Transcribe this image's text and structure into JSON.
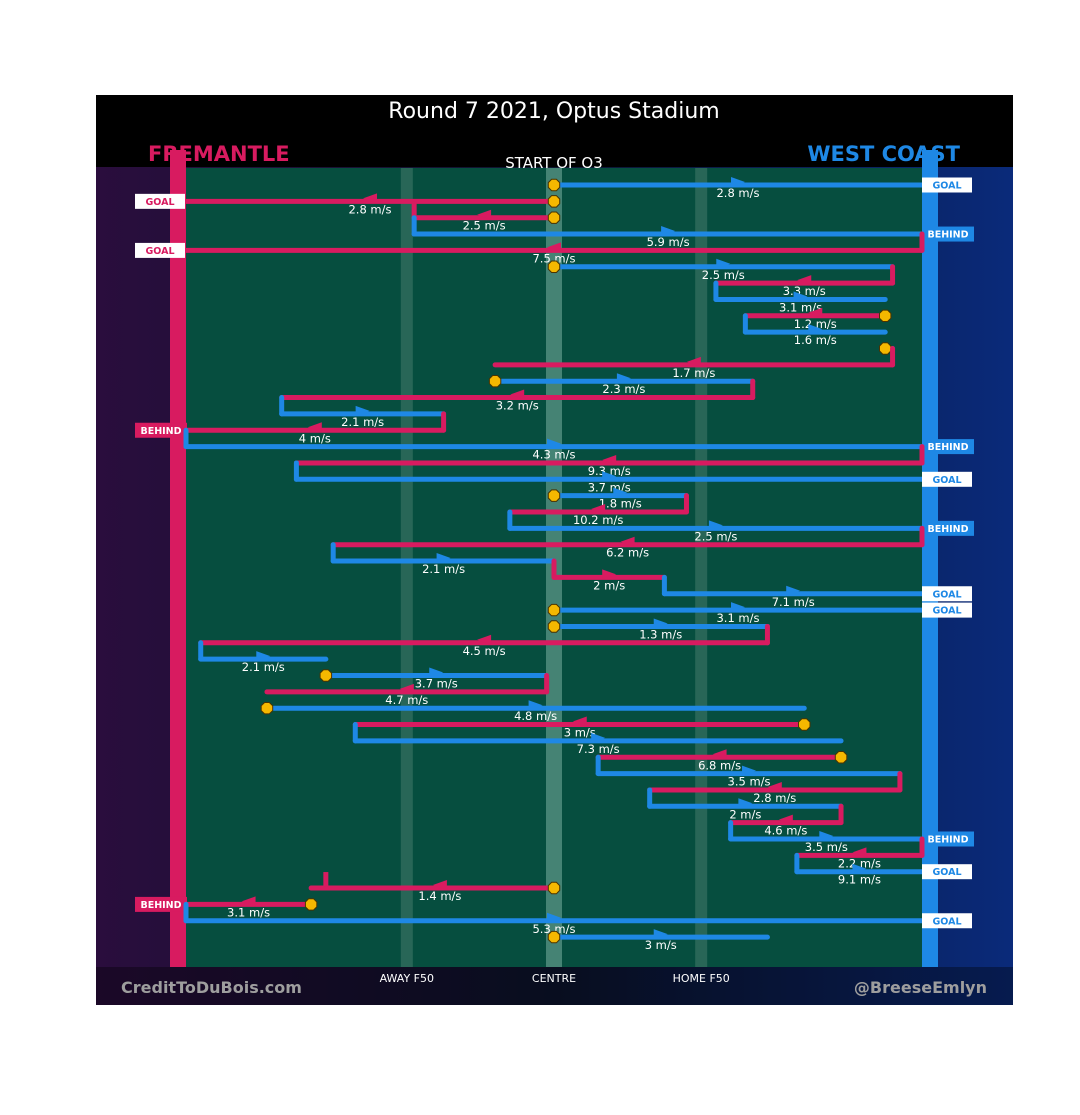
{
  "chart_data": {
    "type": "chain-flow",
    "title": "Round 7 2021, Optus Stadium",
    "subtitle": "START OF Q3",
    "teams": {
      "left": {
        "name": "FREMANTLE",
        "color": "#d81b60"
      },
      "right": {
        "name": "WEST COAST",
        "color": "#1e88e5"
      }
    },
    "x_axis": {
      "ticks": [
        {
          "label": "AWAY F50",
          "value": 0.3
        },
        {
          "label": "CENTRE",
          "value": 0.5
        },
        {
          "label": "HOME F50",
          "value": 0.7
        }
      ],
      "range": [
        0,
        1
      ]
    },
    "footer": {
      "left": "CreditToDuBois.com",
      "right": "@BreeseEmlyn"
    },
    "colors": {
      "fremantle": "#d81b60",
      "west_coast": "#1e88e5",
      "field": "#064e3f",
      "start_marker": "#f5b800",
      "title_bar": "#000000"
    },
    "chains": [
      {
        "team": "west_coast",
        "start": 0.5,
        "segments": [
          [
            0.5,
            1.0
          ]
        ],
        "speed": "2.8 m/s",
        "start_marker": true,
        "outcome": "GOAL"
      },
      {
        "team": "fremantle",
        "start": 0.5,
        "segments": [
          [
            0.5,
            0.0
          ]
        ],
        "speed": "2.8 m/s",
        "start_marker": true,
        "outcome": "GOAL"
      },
      {
        "team": "fremantle",
        "start": 0.5,
        "segments": [
          [
            0.5,
            0.31
          ],
          [
            0.31,
            0.31
          ]
        ],
        "speed": "2.5 m/s",
        "start_marker": true
      },
      {
        "team": "west_coast",
        "start": 0.31,
        "segments": [
          [
            0.31,
            1.0
          ]
        ],
        "speed": "5.9 m/s",
        "outcome": "BEHIND"
      },
      {
        "team": "fremantle",
        "start": 1.0,
        "segments": [
          [
            1.0,
            0.0
          ]
        ],
        "speed": "7.5 m/s",
        "outcome": "GOAL"
      },
      {
        "team": "west_coast",
        "start": 0.5,
        "segments": [
          [
            0.5,
            0.96
          ]
        ],
        "speed": "2.5 m/s",
        "start_marker": true
      },
      {
        "team": "fremantle",
        "start": 0.96,
        "segments": [
          [
            0.96,
            0.72
          ]
        ],
        "speed": "3.3 m/s"
      },
      {
        "team": "west_coast",
        "start": 0.72,
        "segments": [
          [
            0.72,
            0.95
          ]
        ],
        "speed": "3.1 m/s"
      },
      {
        "team": "fremantle",
        "start": 0.95,
        "segments": [
          [
            0.95,
            0.76
          ]
        ],
        "speed": "1.2 m/s",
        "start_marker": true
      },
      {
        "team": "west_coast",
        "start": 0.76,
        "segments": [
          [
            0.76,
            0.95
          ]
        ],
        "speed": "1.6 m/s"
      },
      {
        "team": "west_coast",
        "start": 0.95,
        "segments": [
          [
            0.95,
            0.96
          ]
        ],
        "speed": "",
        "start_marker": true
      },
      {
        "team": "fremantle",
        "start": 0.96,
        "segments": [
          [
            0.96,
            0.42
          ]
        ],
        "speed": "1.7 m/s"
      },
      {
        "team": "west_coast",
        "start": 0.42,
        "segments": [
          [
            0.42,
            0.77
          ]
        ],
        "speed": "2.3 m/s",
        "start_marker": true
      },
      {
        "team": "fremantle",
        "start": 0.77,
        "segments": [
          [
            0.77,
            0.13
          ]
        ],
        "speed": "3.2 m/s"
      },
      {
        "team": "west_coast",
        "start": 0.13,
        "segments": [
          [
            0.13,
            0.35
          ]
        ],
        "speed": "2.1 m/s"
      },
      {
        "team": "fremantle",
        "start": 0.35,
        "segments": [
          [
            0.35,
            0.0
          ]
        ],
        "speed": "4 m/s",
        "outcome": "BEHIND"
      },
      {
        "team": "west_coast",
        "start": 0.0,
        "segments": [
          [
            0.0,
            1.0
          ]
        ],
        "speed": "4.3 m/s",
        "outcome": "BEHIND"
      },
      {
        "team": "fremantle",
        "start": 1.0,
        "segments": [
          [
            1.0,
            0.15
          ]
        ],
        "speed": "9.3 m/s"
      },
      {
        "team": "west_coast",
        "start": 0.15,
        "segments": [
          [
            0.15,
            1.0
          ]
        ],
        "speed": "3.7 m/s",
        "outcome": "GOAL"
      },
      {
        "team": "west_coast",
        "start": 0.5,
        "segments": [
          [
            0.5,
            0.68
          ]
        ],
        "speed": "1.8 m/s",
        "start_marker": true
      },
      {
        "team": "fremantle",
        "start": 0.68,
        "segments": [
          [
            0.68,
            0.44
          ]
        ],
        "speed": "10.2 m/s"
      },
      {
        "team": "west_coast",
        "start": 0.44,
        "segments": [
          [
            0.44,
            1.0
          ]
        ],
        "speed": "2.5 m/s",
        "outcome": "BEHIND"
      },
      {
        "team": "fremantle",
        "start": 1.0,
        "segments": [
          [
            1.0,
            0.2
          ]
        ],
        "speed": "6.2 m/s"
      },
      {
        "team": "west_coast",
        "start": 0.2,
        "segments": [
          [
            0.2,
            0.5
          ]
        ],
        "speed": "2.1 m/s"
      },
      {
        "team": "fremantle",
        "start": 0.5,
        "segments": [
          [
            0.5,
            0.65
          ]
        ],
        "speed": "2 m/s"
      },
      {
        "team": "west_coast",
        "start": 0.65,
        "segments": [
          [
            0.65,
            1.0
          ]
        ],
        "speed": "7.1 m/s",
        "outcome": "GOAL"
      },
      {
        "team": "west_coast",
        "start": 0.5,
        "segments": [
          [
            0.5,
            1.0
          ]
        ],
        "speed": "3.1 m/s",
        "start_marker": true,
        "outcome": "GOAL"
      },
      {
        "team": "west_coast",
        "start": 0.5,
        "segments": [
          [
            0.5,
            0.79
          ]
        ],
        "speed": "1.3 m/s",
        "start_marker": true
      },
      {
        "team": "fremantle",
        "start": 0.79,
        "segments": [
          [
            0.79,
            0.02
          ]
        ],
        "speed": "4.5 m/s"
      },
      {
        "team": "west_coast",
        "start": 0.02,
        "segments": [
          [
            0.02,
            0.19
          ]
        ],
        "speed": "2.1 m/s"
      },
      {
        "team": "west_coast",
        "start": 0.19,
        "segments": [
          [
            0.19,
            0.49
          ]
        ],
        "speed": "3.7 m/s",
        "start_marker": true
      },
      {
        "team": "fremantle",
        "start": 0.49,
        "segments": [
          [
            0.49,
            0.11
          ]
        ],
        "speed": "4.7 m/s"
      },
      {
        "team": "west_coast",
        "start": 0.11,
        "segments": [
          [
            0.11,
            0.84
          ]
        ],
        "speed": "4.8 m/s",
        "start_marker": true
      },
      {
        "team": "fremantle",
        "start": 0.84,
        "segments": [
          [
            0.84,
            0.23
          ]
        ],
        "speed": "3 m/s",
        "start_marker": true
      },
      {
        "team": "west_coast",
        "start": 0.23,
        "segments": [
          [
            0.23,
            0.89
          ]
        ],
        "speed": "7.3 m/s"
      },
      {
        "team": "fremantle",
        "start": 0.89,
        "segments": [
          [
            0.89,
            0.56
          ]
        ],
        "speed": "6.8 m/s",
        "start_marker": true
      },
      {
        "team": "west_coast",
        "start": 0.56,
        "segments": [
          [
            0.56,
            0.97
          ]
        ],
        "speed": "3.5 m/s"
      },
      {
        "team": "fremantle",
        "start": 0.97,
        "segments": [
          [
            0.97,
            0.63
          ]
        ],
        "speed": "2.8 m/s"
      },
      {
        "team": "west_coast",
        "start": 0.63,
        "segments": [
          [
            0.63,
            0.89
          ]
        ],
        "speed": "2 m/s"
      },
      {
        "team": "fremantle",
        "start": 0.89,
        "segments": [
          [
            0.89,
            0.74
          ]
        ],
        "speed": "4.6 m/s"
      },
      {
        "team": "west_coast",
        "start": 0.74,
        "segments": [
          [
            0.74,
            1.0
          ]
        ],
        "speed": "3.5 m/s",
        "outcome": "BEHIND"
      },
      {
        "team": "fremantle",
        "start": 1.0,
        "segments": [
          [
            1.0,
            0.83
          ]
        ],
        "speed": "2.2 m/s"
      },
      {
        "team": "west_coast",
        "start": 0.83,
        "segments": [
          [
            0.83,
            1.0
          ]
        ],
        "speed": "9.1 m/s",
        "outcome": "GOAL"
      },
      {
        "team": "fremantle",
        "start": 0.5,
        "segments": [
          [
            0.5,
            0.19
          ],
          [
            0.19,
            0.17
          ]
        ],
        "speed": "1.4 m/s",
        "start_marker": true
      },
      {
        "team": "fremantle",
        "start": 0.17,
        "segments": [
          [
            0.17,
            0.0
          ]
        ],
        "speed": "3.1 m/s",
        "start_marker": true,
        "outcome": "BEHIND"
      },
      {
        "team": "west_coast",
        "start": 0.0,
        "segments": [
          [
            0.0,
            1.0
          ]
        ],
        "speed": "5.3 m/s",
        "outcome": "GOAL"
      },
      {
        "team": "west_coast",
        "start": 0.5,
        "segments": [
          [
            0.5,
            0.79
          ]
        ],
        "speed": "3 m/s",
        "start_marker": true
      }
    ]
  }
}
